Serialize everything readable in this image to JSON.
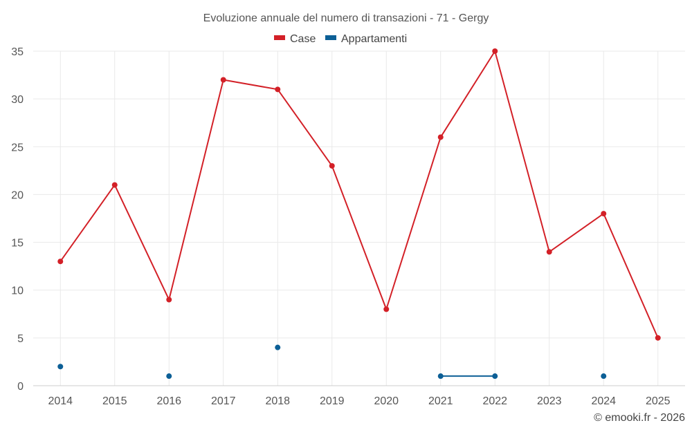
{
  "chart_data": {
    "type": "line",
    "title": "Evoluzione annuale del numero di transazioni - 71 - Gergy",
    "categories": [
      "2014",
      "2015",
      "2016",
      "2017",
      "2018",
      "2019",
      "2020",
      "2021",
      "2022",
      "2023",
      "2024",
      "2025"
    ],
    "series": [
      {
        "name": "Case",
        "color": "#d32027",
        "values": [
          13,
          21,
          9,
          32,
          31,
          23,
          8,
          26,
          35,
          14,
          18,
          5
        ]
      },
      {
        "name": "Appartamenti",
        "color": "#0c5f96",
        "values": [
          2,
          null,
          1,
          null,
          4,
          null,
          null,
          1,
          1,
          null,
          1,
          null
        ]
      }
    ],
    "ylim": [
      0,
      35
    ],
    "yticks": [
      0,
      5,
      10,
      15,
      20,
      25,
      30,
      35
    ],
    "xlabel": "",
    "ylabel": "",
    "grid": true,
    "legend_position": "top-center"
  },
  "credit": "© emooki.fr - 2026"
}
